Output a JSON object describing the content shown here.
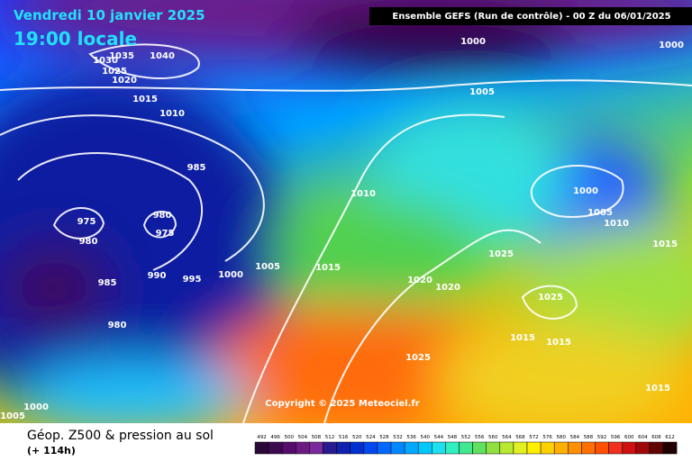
{
  "header": {
    "date": "Vendredi 10 janvier 2025",
    "time": "19:00 locale",
    "run": "Ensemble GEFS  (Run de contrôle)  -  00 Z du 06/01/2025"
  },
  "isobar_labels": [
    "1035",
    "1040",
    "1030",
    "1025",
    "1020",
    "1015",
    "1010",
    "1000",
    "1000",
    "1005",
    "985",
    "975",
    "980",
    "980",
    "975",
    "990",
    "995",
    "1000",
    "1005",
    "1015",
    "1010",
    "1000",
    "1005",
    "1010",
    "1015",
    "1025",
    "1020",
    "1020",
    "1025",
    "985",
    "980",
    "1015",
    "1015",
    "1025",
    "1015",
    "1000",
    "1005"
  ],
  "copyright": "Copyright © 2025 Meteociel.fr",
  "footer": {
    "title": "Géop. Z500 & pression au sol",
    "lead": "(+ 114h)"
  },
  "colorbar": {
    "labels": [
      492,
      496,
      500,
      504,
      508,
      512,
      516,
      520,
      524,
      528,
      532,
      536,
      540,
      544,
      548,
      552,
      556,
      560,
      564,
      568,
      572,
      576,
      580,
      584,
      588,
      592,
      596,
      600,
      604,
      608,
      612
    ]
  }
}
